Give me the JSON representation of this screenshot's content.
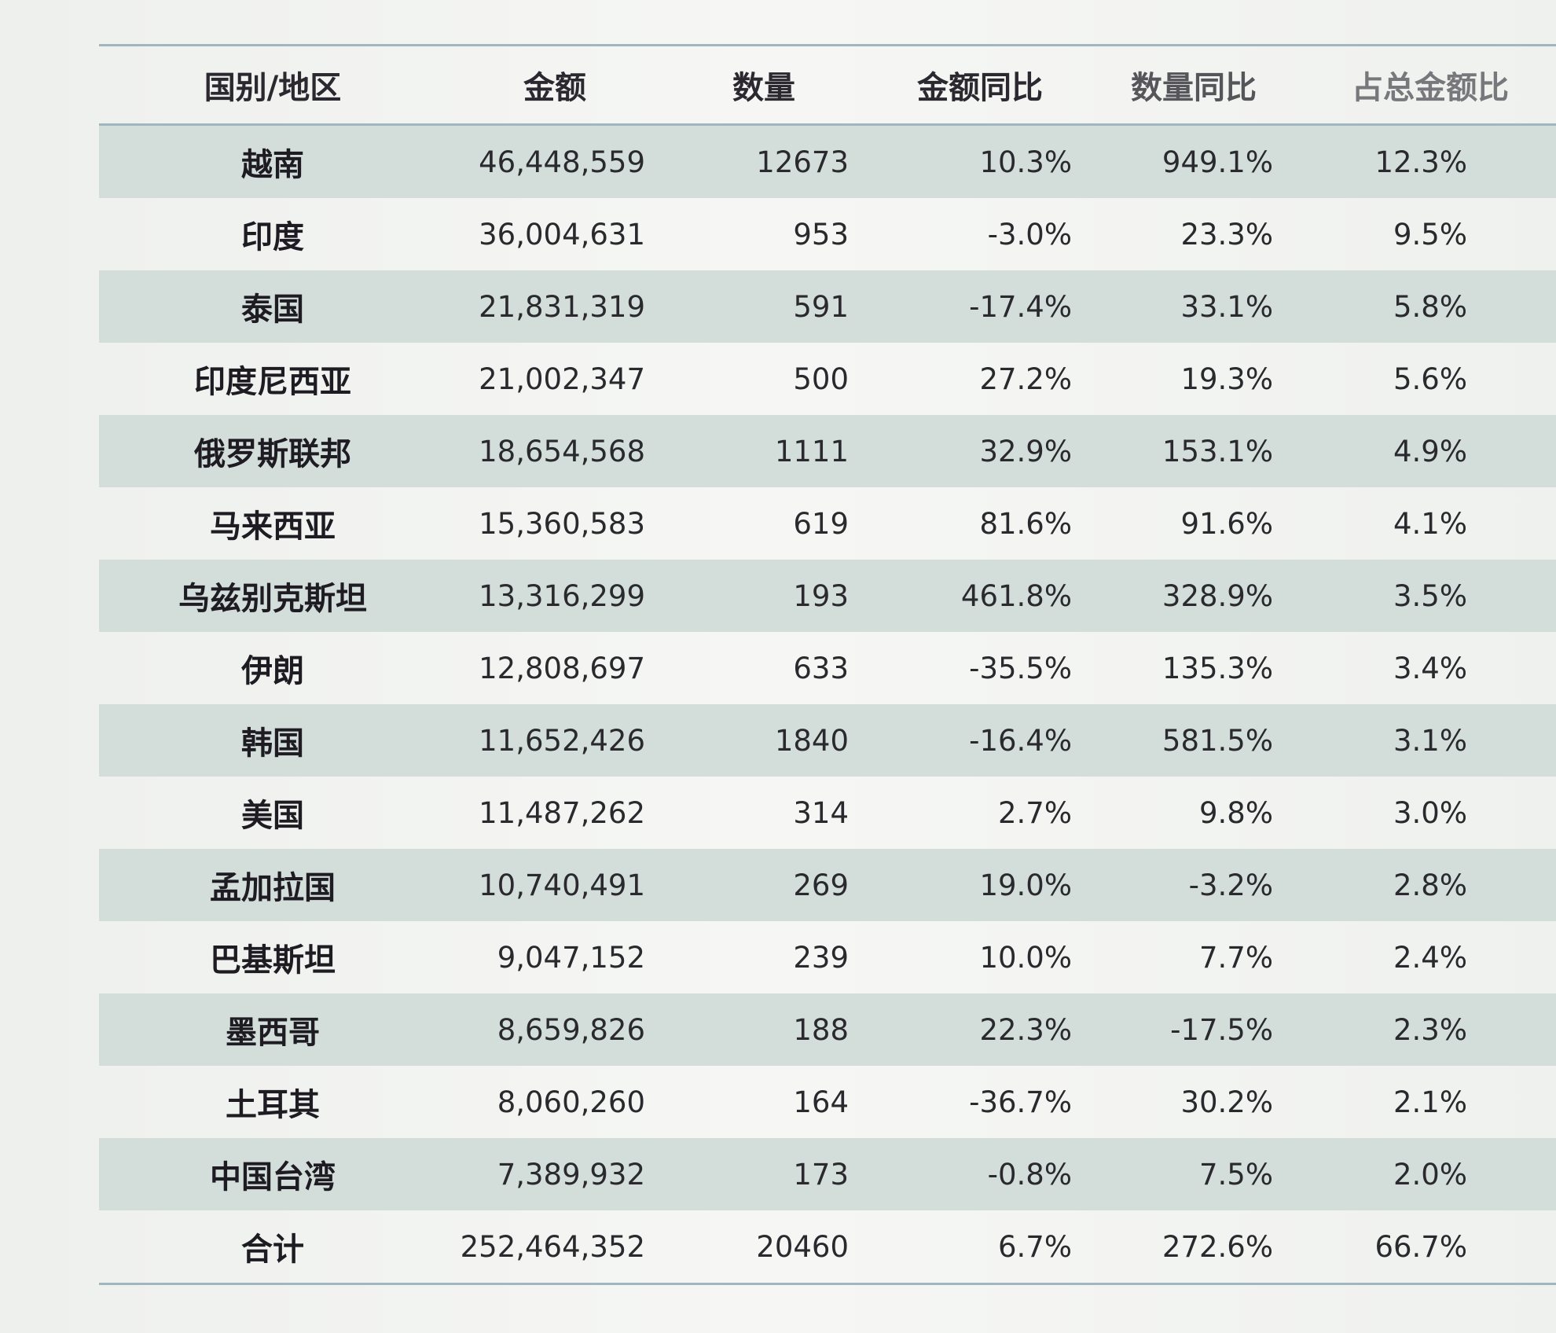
{
  "headers": [
    "国别/地区",
    "金额",
    "数量",
    "金额同比",
    "数量同比",
    "占总金额比"
  ],
  "rows": [
    [
      "越南",
      "46,448,559",
      "12673",
      "10.3%",
      "949.1%",
      "12.3%"
    ],
    [
      "印度",
      "36,004,631",
      "953",
      "-3.0%",
      "23.3%",
      "9.5%"
    ],
    [
      "泰国",
      "21,831,319",
      "591",
      "-17.4%",
      "33.1%",
      "5.8%"
    ],
    [
      "印度尼西亚",
      "21,002,347",
      "500",
      "27.2%",
      "19.3%",
      "5.6%"
    ],
    [
      "俄罗斯联邦",
      "18,654,568",
      "1111",
      "32.9%",
      "153.1%",
      "4.9%"
    ],
    [
      "马来西亚",
      "15,360,583",
      "619",
      "81.6%",
      "91.6%",
      "4.1%"
    ],
    [
      "乌兹别克斯坦",
      "13,316,299",
      "193",
      "461.8%",
      "328.9%",
      "3.5%"
    ],
    [
      "伊朗",
      "12,808,697",
      "633",
      "-35.5%",
      "135.3%",
      "3.4%"
    ],
    [
      "韩国",
      "11,652,426",
      "1840",
      "-16.4%",
      "581.5%",
      "3.1%"
    ],
    [
      "美国",
      "11,487,262",
      "314",
      "2.7%",
      "9.8%",
      "3.0%"
    ],
    [
      "孟加拉国",
      "10,740,491",
      "269",
      "19.0%",
      "-3.2%",
      "2.8%"
    ],
    [
      "巴基斯坦",
      "9,047,152",
      "239",
      "10.0%",
      "7.7%",
      "2.4%"
    ],
    [
      "墨西哥",
      "8,659,826",
      "188",
      "22.3%",
      "-17.5%",
      "2.3%"
    ],
    [
      "土耳其",
      "8,060,260",
      "164",
      "-36.7%",
      "30.2%",
      "2.1%"
    ],
    [
      "中国台湾",
      "7,389,932",
      "173",
      "-0.8%",
      "7.5%",
      "2.0%"
    ],
    [
      "合计",
      "252,464,352",
      "20460",
      "6.7%",
      "272.6%",
      "66.7%"
    ]
  ],
  "colors": {
    "band": "#d3dedb",
    "rule": "#9fb7bd",
    "background": "#f3f4f2"
  }
}
